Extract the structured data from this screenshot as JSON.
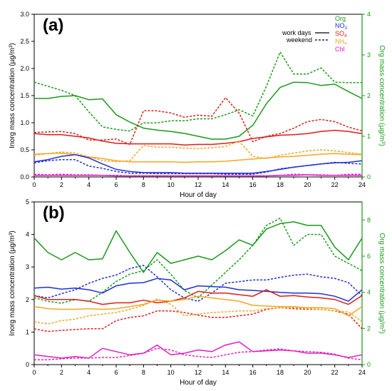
{
  "colors": {
    "org": "#1a9a1a",
    "no3": "#1f2fd6",
    "so4": "#e01b1b",
    "nh4": "#f5a623",
    "chl": "#e020c0",
    "axis": "#000000",
    "org_axis": "#1a9a1a"
  },
  "legend": {
    "org": "Org",
    "no3_base": "NO",
    "no3_sub": "3",
    "so4_base": "SO",
    "so4_sub": "4",
    "nh4_base": "NH",
    "nh4_sub": "4",
    "chl": "Chl",
    "work_days": "work days",
    "weekend": "weekend"
  },
  "chart_data": [
    {
      "panel_label": "(a)",
      "type": "line",
      "xlabel": "Hour of day",
      "ylabel": "Inorg mass concentration (µg/m³)",
      "ylabel_right": "Org mass concentration (µg/m³)",
      "xlim": [
        0,
        24
      ],
      "ylim": [
        0,
        3.0
      ],
      "ylim_right": [
        0,
        4
      ],
      "x_ticks": [
        0,
        2,
        4,
        6,
        8,
        10,
        12,
        14,
        16,
        18,
        20,
        22,
        24
      ],
      "y_ticks": [
        "0.0",
        "0.5",
        "1.0",
        "1.5",
        "2.0",
        "2.5",
        "3.0"
      ],
      "y_ticks_right": [
        "0",
        "1",
        "2",
        "3",
        "4"
      ],
      "x": [
        0,
        1,
        2,
        3,
        4,
        5,
        6,
        7,
        8,
        9,
        10,
        11,
        12,
        13,
        14,
        15,
        16,
        17,
        18,
        19,
        20,
        21,
        22,
        23,
        24
      ],
      "series": [
        {
          "name": "Org",
          "key": "org",
          "axis": "right",
          "style": "work days",
          "values": [
            1.93,
            1.93,
            1.98,
            2.0,
            1.9,
            1.92,
            1.53,
            1.35,
            1.2,
            1.15,
            1.12,
            1.07,
            1.0,
            0.93,
            0.93,
            1.0,
            1.27,
            1.8,
            2.2,
            2.33,
            2.32,
            2.25,
            2.28,
            2.1,
            1.93
          ]
        },
        {
          "name": "Org",
          "key": "org",
          "axis": "right",
          "style": "weekend",
          "values": [
            2.33,
            2.23,
            2.13,
            2.0,
            1.6,
            1.23,
            1.17,
            1.13,
            1.33,
            1.33,
            1.38,
            1.38,
            1.43,
            1.43,
            1.53,
            1.65,
            1.5,
            2.23,
            3.07,
            2.53,
            2.53,
            2.68,
            2.33,
            2.32,
            2.32
          ]
        },
        {
          "name": "SO4",
          "key": "so4",
          "axis": "left",
          "style": "work days",
          "values": [
            0.8,
            0.78,
            0.78,
            0.75,
            0.72,
            0.66,
            0.62,
            0.61,
            0.61,
            0.61,
            0.61,
            0.59,
            0.6,
            0.6,
            0.62,
            0.65,
            0.71,
            0.74,
            0.77,
            0.78,
            0.8,
            0.84,
            0.86,
            0.84,
            0.8
          ]
        },
        {
          "name": "SO4",
          "key": "so4",
          "axis": "left",
          "style": "weekend",
          "values": [
            0.82,
            0.83,
            0.84,
            0.8,
            0.68,
            0.68,
            0.7,
            0.6,
            1.22,
            1.22,
            1.18,
            1.1,
            1.14,
            1.12,
            1.46,
            1.18,
            0.65,
            0.75,
            0.8,
            0.9,
            1.02,
            1.06,
            1.02,
            0.92,
            0.85
          ]
        },
        {
          "name": "NH4",
          "key": "nh4",
          "axis": "left",
          "style": "work days",
          "values": [
            0.42,
            0.43,
            0.44,
            0.41,
            0.37,
            0.34,
            0.3,
            0.28,
            0.28,
            0.28,
            0.28,
            0.27,
            0.28,
            0.28,
            0.29,
            0.31,
            0.33,
            0.35,
            0.37,
            0.38,
            0.4,
            0.42,
            0.43,
            0.42,
            0.41
          ]
        },
        {
          "name": "NH4",
          "key": "nh4",
          "axis": "left",
          "style": "weekend",
          "values": [
            0.4,
            0.43,
            0.46,
            0.44,
            0.37,
            0.3,
            0.28,
            0.3,
            0.58,
            0.55,
            0.55,
            0.53,
            0.52,
            0.54,
            0.56,
            0.66,
            0.38,
            0.34,
            0.4,
            0.44,
            0.48,
            0.5,
            0.48,
            0.45,
            0.42
          ]
        },
        {
          "name": "NO3",
          "key": "no3",
          "axis": "left",
          "style": "work days",
          "values": [
            0.28,
            0.32,
            0.38,
            0.41,
            0.35,
            0.24,
            0.14,
            0.1,
            0.08,
            0.08,
            0.08,
            0.07,
            0.07,
            0.07,
            0.07,
            0.07,
            0.07,
            0.1,
            0.14,
            0.18,
            0.21,
            0.24,
            0.26,
            0.27,
            0.3
          ]
        },
        {
          "name": "NO3",
          "key": "no3",
          "axis": "left",
          "style": "weekend",
          "values": [
            0.26,
            0.3,
            0.32,
            0.32,
            0.2,
            0.16,
            0.1,
            0.07,
            0.07,
            0.06,
            0.06,
            0.06,
            0.06,
            0.06,
            0.05,
            0.05,
            0.05,
            0.09,
            0.15,
            0.18,
            0.21,
            0.24,
            0.27,
            0.25,
            0.24
          ]
        },
        {
          "name": "Chl",
          "key": "chl",
          "axis": "left",
          "style": "work days",
          "values": [
            0.03,
            0.03,
            0.03,
            0.03,
            0.03,
            0.03,
            0.02,
            0.02,
            0.02,
            0.02,
            0.02,
            0.02,
            0.02,
            0.02,
            0.02,
            0.02,
            0.02,
            0.02,
            0.03,
            0.03,
            0.04,
            0.03,
            0.03,
            0.03,
            0.03
          ]
        },
        {
          "name": "Chl",
          "key": "chl",
          "axis": "left",
          "style": "weekend",
          "values": [
            0.05,
            0.04,
            0.05,
            0.04,
            0.04,
            0.03,
            0.03,
            0.02,
            0.02,
            0.02,
            0.02,
            0.02,
            0.02,
            0.02,
            0.02,
            0.02,
            0.02,
            0.02,
            0.03,
            0.05,
            0.04,
            0.04,
            0.03,
            0.05,
            0.05
          ]
        }
      ]
    },
    {
      "panel_label": "(b)",
      "type": "line",
      "xlabel": "Hour of day",
      "ylabel": "Inorg mass concentration (µg/m³)",
      "ylabel_right": "Org mass concentration (µg/m³)",
      "xlim": [
        0,
        24
      ],
      "ylim": [
        0,
        5
      ],
      "ylim_right": [
        0,
        9
      ],
      "x_ticks": [
        0,
        2,
        4,
        6,
        8,
        10,
        12,
        14,
        16,
        18,
        20,
        22,
        24
      ],
      "y_ticks": [
        "0",
        "1",
        "2",
        "3",
        "4",
        "5"
      ],
      "y_ticks_right": [
        "0",
        "2",
        "4",
        "6",
        "8"
      ],
      "x": [
        0,
        1,
        2,
        3,
        4,
        5,
        6,
        7,
        8,
        9,
        10,
        11,
        12,
        13,
        14,
        15,
        16,
        17,
        18,
        19,
        20,
        21,
        22,
        23,
        24
      ],
      "series": [
        {
          "name": "Org",
          "key": "org",
          "axis": "right",
          "style": "work days",
          "values": [
            7.0,
            6.2,
            5.8,
            6.2,
            5.8,
            5.85,
            7.4,
            6.2,
            5.1,
            6.2,
            5.6,
            5.8,
            6.0,
            5.8,
            6.3,
            6.9,
            6.6,
            7.5,
            7.8,
            7.9,
            7.7,
            7.7,
            6.5,
            5.8,
            7.0
          ]
        },
        {
          "name": "Org",
          "key": "org",
          "axis": "right",
          "style": "weekend",
          "values": [
            3.7,
            3.5,
            3.4,
            3.6,
            3.5,
            4.0,
            4.6,
            5.0,
            5.2,
            5.8,
            5.0,
            4.1,
            3.7,
            4.4,
            5.1,
            5.8,
            6.6,
            7.7,
            8.1,
            6.6,
            7.2,
            7.2,
            6.0,
            5.6,
            5.2
          ]
        },
        {
          "name": "NO3",
          "key": "no3",
          "axis": "left",
          "style": "work days",
          "values": [
            2.35,
            2.38,
            2.32,
            2.35,
            2.3,
            2.2,
            2.42,
            2.5,
            2.52,
            2.65,
            2.6,
            2.3,
            2.42,
            2.4,
            2.38,
            2.3,
            2.28,
            2.25,
            2.22,
            2.2,
            2.2,
            2.18,
            2.1,
            1.95,
            2.3
          ]
        },
        {
          "name": "NO3",
          "key": "no3",
          "axis": "left",
          "style": "weekend",
          "values": [
            2.12,
            2.05,
            2.18,
            2.3,
            2.5,
            2.65,
            2.75,
            2.95,
            3.05,
            2.7,
            2.3,
            2.05,
            1.95,
            2.2,
            2.5,
            2.55,
            2.6,
            2.6,
            2.68,
            2.75,
            2.78,
            2.7,
            2.65,
            2.52,
            2.12
          ]
        },
        {
          "name": "SO4",
          "key": "so4",
          "axis": "left",
          "style": "work days",
          "values": [
            2.12,
            2.0,
            2.0,
            2.0,
            1.95,
            1.85,
            1.9,
            1.9,
            1.98,
            1.9,
            1.95,
            2.05,
            2.25,
            2.2,
            2.2,
            2.15,
            2.1,
            2.3,
            2.1,
            2.12,
            2.08,
            2.05,
            2.0,
            1.85,
            2.12
          ]
        },
        {
          "name": "SO4",
          "key": "so4",
          "axis": "left",
          "style": "weekend",
          "values": [
            1.1,
            1.02,
            1.05,
            1.08,
            1.1,
            1.1,
            1.35,
            1.45,
            1.5,
            1.65,
            1.65,
            1.6,
            1.52,
            1.45,
            1.45,
            1.5,
            1.55,
            1.7,
            1.75,
            1.72,
            1.7,
            1.7,
            1.65,
            1.55,
            1.1
          ]
        },
        {
          "name": "NH4",
          "key": "nh4",
          "axis": "left",
          "style": "work days",
          "values": [
            1.78,
            1.72,
            1.7,
            1.7,
            1.72,
            1.7,
            1.72,
            1.78,
            1.85,
            1.98,
            1.95,
            2.0,
            2.1,
            2.05,
            2.0,
            1.95,
            1.82,
            1.8,
            1.78,
            1.78,
            1.75,
            1.75,
            1.72,
            1.5,
            1.78
          ]
        },
        {
          "name": "NH4",
          "key": "nh4",
          "axis": "left",
          "style": "weekend",
          "values": [
            1.32,
            1.25,
            1.35,
            1.4,
            1.5,
            1.55,
            1.6,
            1.7,
            1.82,
            2.02,
            1.85,
            1.5,
            1.55,
            1.6,
            1.62,
            1.65,
            1.65,
            1.72,
            1.75,
            1.75,
            1.72,
            1.7,
            1.65,
            1.62,
            1.32
          ]
        },
        {
          "name": "Chl",
          "key": "chl",
          "axis": "left",
          "style": "work days",
          "values": [
            0.3,
            0.25,
            0.2,
            0.25,
            0.2,
            0.5,
            0.4,
            0.3,
            0.35,
            0.6,
            0.3,
            0.35,
            0.45,
            0.4,
            0.6,
            0.7,
            0.4,
            0.42,
            0.45,
            0.42,
            0.35,
            0.35,
            0.3,
            0.22,
            0.3
          ]
        },
        {
          "name": "Chl",
          "key": "chl",
          "axis": "left",
          "style": "weekend",
          "values": [
            0.15,
            0.15,
            0.18,
            0.2,
            0.2,
            0.22,
            0.22,
            0.28,
            0.35,
            0.5,
            0.45,
            0.3,
            0.25,
            0.22,
            0.3,
            0.38,
            0.4,
            0.45,
            0.48,
            0.42,
            0.4,
            0.38,
            0.32,
            0.2,
            0.15
          ]
        }
      ]
    }
  ]
}
